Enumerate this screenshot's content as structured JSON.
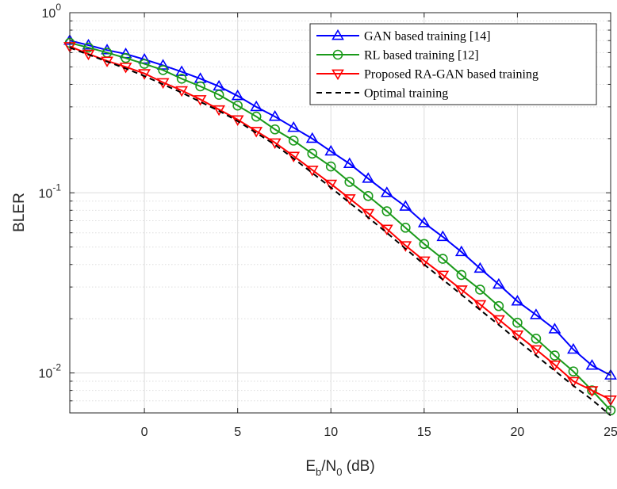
{
  "chart_data": {
    "type": "line",
    "xlabel_main": "E",
    "xlabel_sub1": "b",
    "xlabel_mid": "/N",
    "xlabel_sub2": "0",
    "xlabel_unit": " (dB)",
    "ylabel": "BLER",
    "y_scale": "log",
    "xlim": [
      -4,
      25
    ],
    "ylim": [
      0.006,
      1
    ],
    "x_ticks": [
      0,
      5,
      10,
      15,
      20,
      25
    ],
    "y_ticks": [
      {
        "value": 1,
        "base": "10",
        "exp": "0"
      },
      {
        "value": 0.1,
        "base": "10",
        "exp": "-1"
      },
      {
        "value": 0.01,
        "base": "10",
        "exp": "-2"
      }
    ],
    "grid": true,
    "legend_position": "top-right",
    "x": [
      -4,
      -3,
      -2,
      -1,
      0,
      1,
      2,
      3,
      4,
      5,
      6,
      7,
      8,
      9,
      10,
      11,
      12,
      13,
      14,
      15,
      16,
      17,
      18,
      19,
      20,
      21,
      22,
      23,
      24,
      25
    ],
    "series": [
      {
        "name": "GAN based training [14]",
        "color": "#0000ff",
        "marker": "triangle-up",
        "dash": "solid",
        "values": [
          0.7,
          0.66,
          0.62,
          0.59,
          0.55,
          0.51,
          0.47,
          0.43,
          0.39,
          0.345,
          0.3,
          0.265,
          0.23,
          0.2,
          0.17,
          0.145,
          0.12,
          0.1,
          0.084,
          0.068,
          0.057,
          0.047,
          0.038,
          0.031,
          0.025,
          0.021,
          0.0175,
          0.0135,
          0.011,
          0.0097
        ]
      },
      {
        "name": "RL based training [12]",
        "color": "#1a9a1a",
        "marker": "circle",
        "dash": "solid",
        "values": [
          0.68,
          0.64,
          0.6,
          0.56,
          0.52,
          0.48,
          0.43,
          0.39,
          0.35,
          0.305,
          0.265,
          0.225,
          0.195,
          0.165,
          0.14,
          0.115,
          0.096,
          0.079,
          0.064,
          0.052,
          0.043,
          0.035,
          0.029,
          0.0235,
          0.019,
          0.0155,
          0.0125,
          0.0102,
          0.008,
          0.0062
        ]
      },
      {
        "name": "Proposed RA-GAN based training",
        "color": "#ff0000",
        "marker": "triangle-down",
        "dash": "solid",
        "values": [
          0.65,
          0.59,
          0.54,
          0.5,
          0.46,
          0.41,
          0.37,
          0.33,
          0.29,
          0.255,
          0.22,
          0.19,
          0.16,
          0.134,
          0.112,
          0.093,
          0.077,
          0.063,
          0.051,
          0.042,
          0.035,
          0.029,
          0.024,
          0.0198,
          0.0163,
          0.0135,
          0.0111,
          0.009,
          0.008,
          0.0071
        ]
      },
      {
        "name": "Optimal training",
        "color": "#000000",
        "marker": "none",
        "dash": "dashed",
        "values": [
          0.64,
          0.585,
          0.535,
          0.49,
          0.445,
          0.4,
          0.36,
          0.32,
          0.285,
          0.25,
          0.215,
          0.185,
          0.155,
          0.129,
          0.107,
          0.088,
          0.073,
          0.06,
          0.049,
          0.04,
          0.033,
          0.0272,
          0.0224,
          0.0185,
          0.0152,
          0.0125,
          0.0103,
          0.0085,
          0.0071,
          0.0058
        ]
      }
    ]
  }
}
